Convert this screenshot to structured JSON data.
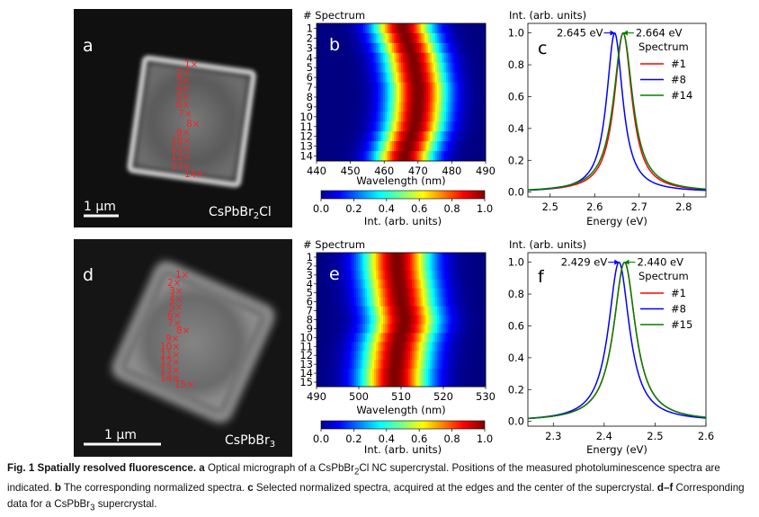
{
  "figure": {
    "panels": {
      "a": {
        "letter": "a",
        "material_base": "CsPbBr",
        "material_sub": "2",
        "material_tail": "Cl",
        "scalebar_label": "1 µm",
        "markers": [
          "1",
          "2",
          "3",
          "4",
          "5",
          "6",
          "7",
          "8",
          "9",
          "10",
          "11",
          "12",
          "13",
          "14"
        ]
      },
      "d": {
        "letter": "d",
        "material_base": "CsPbBr",
        "material_sub": "3",
        "material_tail": "",
        "scalebar_label": "1 µm",
        "markers": [
          "1",
          "2",
          "3",
          "4",
          "5",
          "6",
          "7",
          "8",
          "9",
          "10",
          "11",
          "12",
          "13",
          "14",
          "15"
        ]
      },
      "b": {
        "letter": "b"
      },
      "e": {
        "letter": "e"
      },
      "c": {
        "letter": "c"
      },
      "f": {
        "letter": "f"
      }
    },
    "colors": {
      "series_1": "#ff0000",
      "series_8": "#0000ff",
      "series_last": "#008000",
      "marker": "#ff2020"
    }
  },
  "chart_data": [
    {
      "panel": "b",
      "type": "heatmap",
      "ylabel": "# Spectrum",
      "xlabel": "Wavelength (nm)",
      "x_ticks": [
        440,
        450,
        460,
        470,
        480,
        490
      ],
      "xlim": [
        440,
        490
      ],
      "y_categories": [
        "1",
        "2",
        "3",
        "4",
        "5",
        "6",
        "7",
        "8",
        "9",
        "10",
        "11",
        "12",
        "13",
        "14"
      ],
      "peak_wavelength_nm": [
        465.5,
        466.5,
        467.5,
        468.5,
        469.0,
        469.5,
        470.0,
        470.0,
        469.8,
        469.5,
        469.0,
        468.0,
        467.0,
        466.0
      ],
      "fwhm_nm": 14,
      "colorbar": {
        "label": "Int. (arb. units)",
        "ticks": [
          "0.0",
          "0.2",
          "0.4",
          "0.6",
          "0.8",
          "1.0"
        ],
        "range": [
          0,
          1
        ],
        "colormap": "jet"
      }
    },
    {
      "panel": "c",
      "type": "line",
      "ylabel": "Int. (arb. units)",
      "xlabel": "Energy (eV)",
      "x_ticks": [
        "2.5",
        "2.6",
        "2.7",
        "2.8"
      ],
      "y_ticks": [
        "0.0",
        "0.2",
        "0.4",
        "0.6",
        "0.8",
        "1.0"
      ],
      "xlim": [
        2.45,
        2.85
      ],
      "ylim": [
        -0.03,
        1.06
      ],
      "legend_title": "Spectrum",
      "legend_position": "right",
      "series": [
        {
          "name": "#1",
          "color": "#ff0000",
          "peak": 2.664,
          "gamma": 0.024
        },
        {
          "name": "#8",
          "color": "#0000ff",
          "peak": 2.645,
          "gamma": 0.022
        },
        {
          "name": "#14",
          "color": "#008000",
          "peak": 2.664,
          "gamma": 0.026
        }
      ],
      "annotations": [
        {
          "text": "2.645 eV",
          "x": 2.645,
          "direction": "left",
          "color": "#0000ff"
        },
        {
          "text": "2.664 eV",
          "x": 2.664,
          "direction": "right",
          "color": "#008000"
        }
      ]
    },
    {
      "panel": "e",
      "type": "heatmap",
      "ylabel": "# Spectrum",
      "xlabel": "Wavelength (nm)",
      "x_ticks": [
        490,
        500,
        510,
        520,
        530
      ],
      "xlim": [
        490,
        530
      ],
      "y_categories": [
        "1",
        "2",
        "3",
        "4",
        "5",
        "6",
        "7",
        "8",
        "9",
        "10",
        "11",
        "12",
        "13",
        "14",
        "15"
      ],
      "peak_wavelength_nm": [
        509.0,
        509.0,
        509.2,
        509.5,
        509.8,
        510.0,
        510.5,
        510.8,
        510.5,
        509.8,
        509.3,
        509.0,
        508.8,
        508.5,
        508.5
      ],
      "fwhm_nm": 13,
      "colorbar": {
        "label": "Int. (arb. units)",
        "ticks": [
          "0.0",
          "0.2",
          "0.4",
          "0.6",
          "0.8",
          "1.0"
        ],
        "range": [
          0,
          1
        ],
        "colormap": "jet"
      }
    },
    {
      "panel": "f",
      "type": "line",
      "ylabel": "Int. (arb. units)",
      "xlabel": "Energy (eV)",
      "x_ticks": [
        "2.3",
        "2.4",
        "2.5",
        "2.6"
      ],
      "y_ticks": [
        "0.0",
        "0.2",
        "0.4",
        "0.6",
        "0.8",
        "1.0"
      ],
      "xlim": [
        2.25,
        2.6
      ],
      "ylim": [
        -0.03,
        1.06
      ],
      "legend_title": "Spectrum",
      "legend_position": "right",
      "series": [
        {
          "name": "#1",
          "color": "#ff0000",
          "peak": 2.44,
          "gamma": 0.026
        },
        {
          "name": "#8",
          "color": "#0000ff",
          "peak": 2.429,
          "gamma": 0.025
        },
        {
          "name": "#15",
          "color": "#008000",
          "peak": 2.44,
          "gamma": 0.026
        }
      ],
      "annotations": [
        {
          "text": "2.429 eV",
          "x": 2.429,
          "direction": "left",
          "color": "#0000ff"
        },
        {
          "text": "2.440 eV",
          "x": 2.44,
          "direction": "right",
          "color": "#008000"
        }
      ]
    }
  ],
  "caption": {
    "fig_label": "Fig. 1 Spatially resolved fluorescence.",
    "a_label": "a",
    "a_text_1": " Optical micrograph of a CsPbBr",
    "a_sub": "2",
    "a_text_2": "Cl NC supercrystal. Positions of the measured photoluminescence spectra are indicated. ",
    "b_label": "b",
    "b_text": " The corresponding normalized spectra. ",
    "c_label": "c",
    "c_text": " Selected normalized spectra, acquired at the edges and the center of the supercrystal.",
    "df_label": "d–f",
    "df_text_1": " Corresponding data for a CsPbBr",
    "df_sub": "3",
    "df_text_2": " supercrystal."
  }
}
